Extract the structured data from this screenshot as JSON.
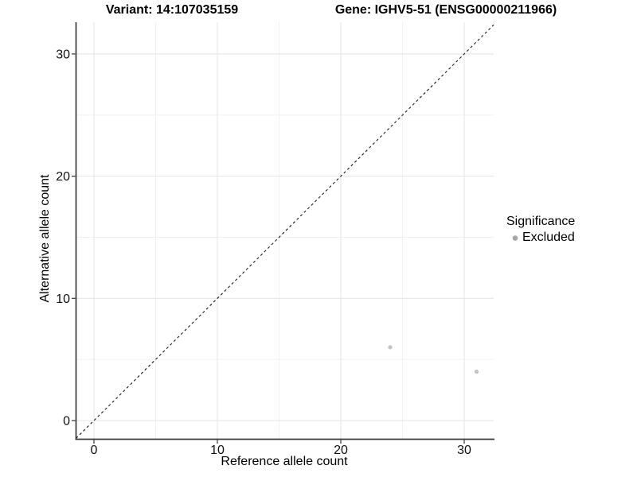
{
  "titles": {
    "variant": "Variant: 14:107035159",
    "gene": "Gene: IGHV5-51 (ENSG00000211966)"
  },
  "chart_data": {
    "type": "scatter",
    "title_left": "Variant: 14:107035159",
    "title_right": "Gene: IGHV5-51 (ENSG00000211966)",
    "xlabel": "Reference allele count",
    "ylabel": "Alternative allele count",
    "x_ticks": [
      0,
      10,
      20,
      30
    ],
    "y_ticks": [
      0,
      10,
      20,
      30
    ],
    "x_minor_gridlines": [
      5,
      15,
      25
    ],
    "y_minor_gridlines": [
      5,
      15,
      25
    ],
    "xlim": [
      -1.45,
      32.4
    ],
    "ylim": [
      -1.55,
      32.6
    ],
    "grid": "major and minor, light gray, white panel",
    "reference_line": {
      "type": "identity y=x",
      "slope": 1,
      "intercept": 0,
      "style": "dashed",
      "color": "#1a1a1a"
    },
    "series": [
      {
        "name": "Excluded",
        "color": "#c3c3c3",
        "points": [
          {
            "x": 24,
            "y": 6
          },
          {
            "x": 31,
            "y": 4
          }
        ]
      }
    ],
    "legend": {
      "title": "Significance",
      "position": "right",
      "items": [
        {
          "label": "Excluded",
          "marker": "circle",
          "marker_color": "#a6a6a6"
        }
      ]
    }
  },
  "colors": {
    "background": "#ffffff",
    "axis_line": "#3a3a3a",
    "tick_mark": "#333333",
    "grid_major": "#e4e4e4",
    "grid_minor": "#f1f1f1",
    "point": "#c3c3c3",
    "legend_marker": "#a6a6a6",
    "text": "#000000"
  }
}
